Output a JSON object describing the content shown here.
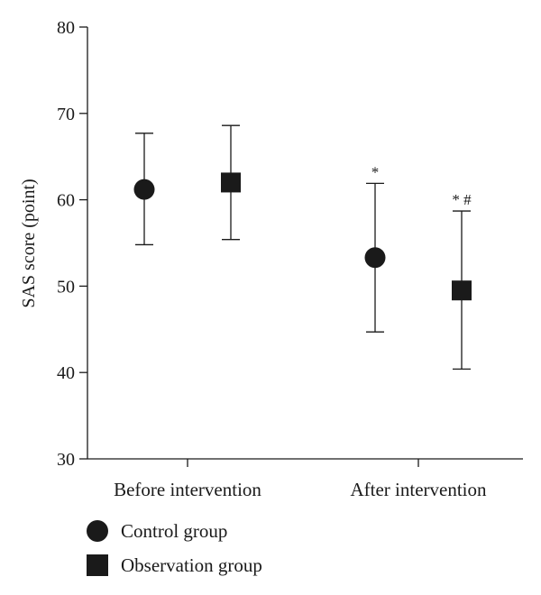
{
  "chart_data": {
    "type": "scatter",
    "categories": [
      "Before intervention",
      "After intervention"
    ],
    "ylabel": "SAS score (point)",
    "xlabel": "",
    "ylim": [
      30,
      80
    ],
    "yticks": [
      30,
      40,
      50,
      60,
      70,
      80
    ],
    "grid": false,
    "legend_placement": "bottom-left",
    "series": [
      {
        "name": "Control group",
        "marker": "circle",
        "values": [
          61.2,
          53.3
        ],
        "error_low": [
          54.8,
          44.7
        ],
        "error_high": [
          67.7,
          61.9
        ],
        "annotations": [
          "",
          "*"
        ]
      },
      {
        "name": "Observation group",
        "marker": "square",
        "values": [
          62.0,
          49.5
        ],
        "error_low": [
          55.4,
          40.4
        ],
        "error_high": [
          68.6,
          58.7
        ],
        "annotations": [
          "",
          "* #"
        ]
      }
    ],
    "colors": {
      "marker": "#1a1a1a",
      "axis": "#1a1a1a"
    }
  }
}
